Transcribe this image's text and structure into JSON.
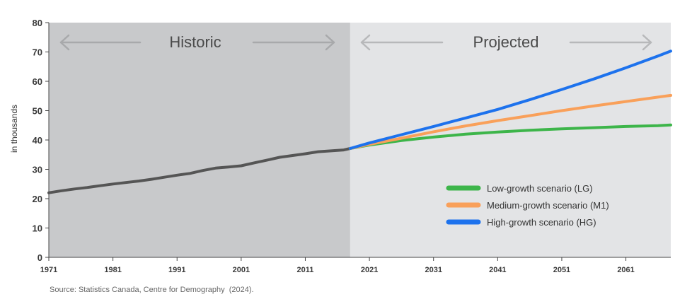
{
  "chart_data": {
    "type": "line",
    "ylabel": "in thousands",
    "ylim": [
      0,
      80
    ],
    "yticks": [
      0,
      10,
      20,
      30,
      40,
      50,
      60,
      70,
      80
    ],
    "xlim": [
      1971,
      2068
    ],
    "xticks": [
      "1971",
      "1981",
      "1991",
      "2001",
      "2011",
      "2021",
      "2031",
      "2041",
      "2051",
      "2061"
    ],
    "regions": {
      "historic": {
        "label": "Historic",
        "range": [
          1971,
          2018
        ],
        "color": "#c8c9cb"
      },
      "projected": {
        "label": "Projected",
        "range": [
          2018,
          2068
        ],
        "color": "#e3e4e6"
      }
    },
    "series": [
      {
        "name": "Historic",
        "color": "#555555",
        "x": [
          1971,
          1973,
          1975,
          1977,
          1979,
          1981,
          1983,
          1985,
          1987,
          1989,
          1991,
          1993,
          1995,
          1997,
          1999,
          2001,
          2003,
          2005,
          2007,
          2009,
          2011,
          2013,
          2015,
          2017,
          2018
        ],
        "values": [
          22.0,
          22.7,
          23.3,
          23.8,
          24.4,
          25.0,
          25.5,
          26.0,
          26.6,
          27.3,
          28.0,
          28.6,
          29.6,
          30.4,
          30.8,
          31.2,
          32.2,
          33.1,
          34.1,
          34.7,
          35.3,
          36.0,
          36.3,
          36.6,
          37.1
        ]
      },
      {
        "name": "Low-growth scenario (LG)",
        "color": "#3db54a",
        "x": [
          2018,
          2021,
          2026,
          2031,
          2036,
          2041,
          2046,
          2051,
          2056,
          2061,
          2066,
          2068
        ],
        "values": [
          37.1,
          38.3,
          39.8,
          41.0,
          42.0,
          42.7,
          43.3,
          43.8,
          44.2,
          44.6,
          44.9,
          45.1
        ]
      },
      {
        "name": "Medium-growth scenario (M1)",
        "color": "#f9a05a",
        "x": [
          2018,
          2021,
          2026,
          2031,
          2036,
          2041,
          2046,
          2051,
          2056,
          2061,
          2066,
          2068
        ],
        "values": [
          37.1,
          38.5,
          40.6,
          42.8,
          44.8,
          46.6,
          48.3,
          50.0,
          51.6,
          53.1,
          54.6,
          55.2
        ]
      },
      {
        "name": "High-growth scenario (HG)",
        "color": "#1d72ed",
        "x": [
          2018,
          2021,
          2026,
          2031,
          2036,
          2041,
          2046,
          2051,
          2056,
          2061,
          2066,
          2068
        ],
        "values": [
          37.1,
          39.0,
          41.8,
          44.6,
          47.5,
          50.4,
          53.7,
          57.2,
          60.8,
          64.6,
          68.6,
          70.3
        ]
      }
    ],
    "legend": {
      "placement": "bottom-right",
      "entries": [
        "Low-growth scenario (LG)",
        "Medium-growth scenario (M1)",
        "High-growth scenario (HG)"
      ]
    }
  },
  "source": "Source: Statistics Canada, Centre for Demography  (2024)."
}
